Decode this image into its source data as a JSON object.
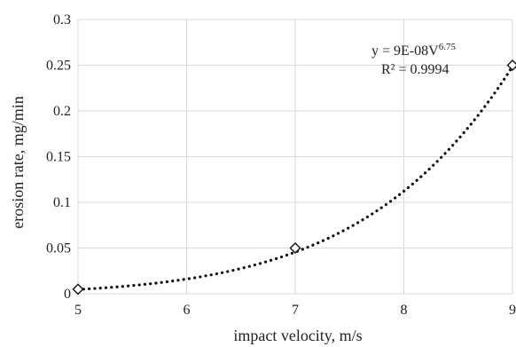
{
  "chart_data": {
    "type": "scatter",
    "xlabel": "impact velocity, m/s",
    "ylabel": "erosion rate, mg/min",
    "xlim": [
      5,
      9
    ],
    "ylim": [
      0,
      0.3
    ],
    "x_ticks": [
      "5",
      "6",
      "7",
      "8",
      "9"
    ],
    "y_ticks": [
      "0",
      "0.05",
      "0.1",
      "0.15",
      "0.2",
      "0.25",
      "0.3"
    ],
    "grid": true,
    "series": [
      {
        "x": [
          5,
          7,
          9
        ],
        "y": [
          0.005,
          0.05,
          0.25
        ],
        "marker": "diamond-open"
      }
    ],
    "trendline": {
      "type": "power",
      "coefficient": 9e-08,
      "exponent": 6.75,
      "style": "dotted",
      "color": "#111111"
    },
    "annotations": {
      "equation_main": "y = 9E-08V",
      "equation_exp": "6.75",
      "r_squared": "R² = 0.9994"
    }
  }
}
